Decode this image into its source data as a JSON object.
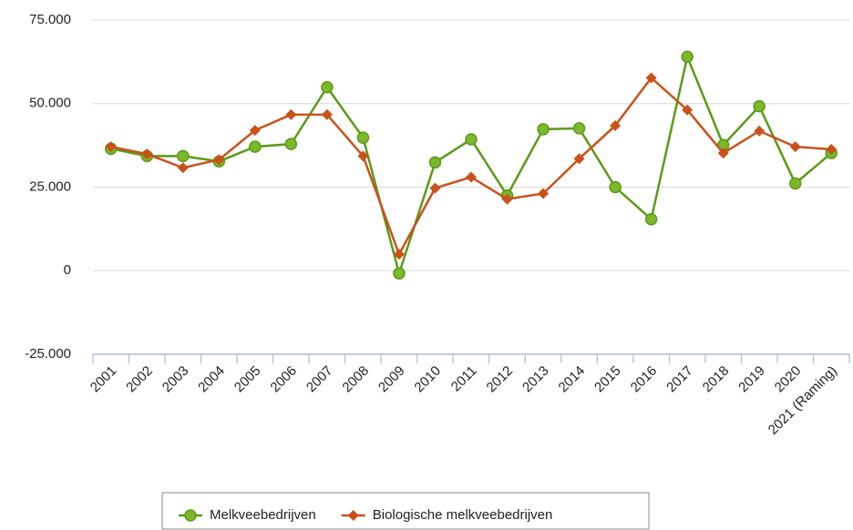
{
  "chart_data": {
    "type": "line",
    "categories": [
      "2001",
      "2002",
      "2003",
      "2004",
      "2005",
      "2006",
      "2007",
      "2008",
      "2009",
      "2010",
      "2011",
      "2012",
      "2013",
      "2014",
      "2015",
      "2016",
      "2017",
      "2018",
      "2019",
      "2020",
      "2021 (Raming)"
    ],
    "series": [
      {
        "name": "Melkveebedrijven",
        "color": "#5b9a17",
        "marker": "circle",
        "values": [
          36500,
          34300,
          34300,
          32700,
          37100,
          37900,
          54900,
          39800,
          -800,
          32400,
          39300,
          22500,
          42300,
          42600,
          25000,
          15400,
          64000,
          37600,
          49200,
          26100,
          35200
        ]
      },
      {
        "name": "Biologische melkveebedrijven",
        "color": "#c9521b",
        "marker": "diamond",
        "values": [
          37100,
          34900,
          30800,
          33200,
          42000,
          46700,
          46700,
          34300,
          4900,
          24700,
          28000,
          21400,
          23100,
          33500,
          43400,
          57700,
          48100,
          35200,
          41800,
          37100,
          36300
        ]
      }
    ],
    "ylim": [
      -25000,
      75000
    ],
    "yticks": [
      {
        "value": -25000,
        "label": "-25.000"
      },
      0,
      {
        "value": 25000,
        "label": "25.000"
      },
      {
        "value": 50000,
        "label": "50.000"
      },
      {
        "value": 75000,
        "label": "75.000"
      }
    ],
    "grid": true,
    "legend": "bottom"
  }
}
